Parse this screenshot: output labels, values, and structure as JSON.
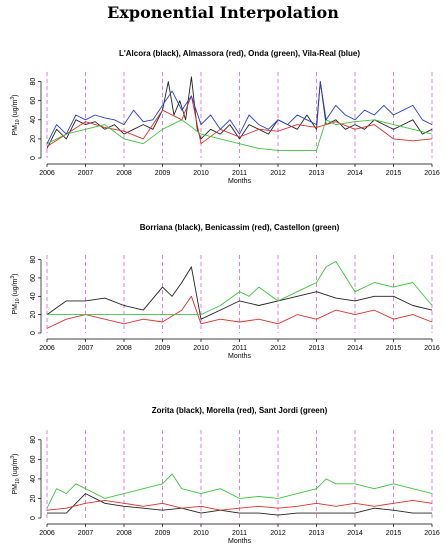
{
  "figure": {
    "title": "Exponential Interpolation"
  },
  "colors": {
    "black": "#222222",
    "red": "#e0302a",
    "green": "#3dc43d",
    "blue": "#2a3fd6",
    "year_line": "#e070e0"
  },
  "chart_data": [
    {
      "type": "line",
      "title": "L'Alcora (black), Almassora (red), Onda (green), Vila-Real (blue)",
      "xlabel": "Months",
      "ylabel": "PM10 (ug/m3)",
      "ylabel_parts": [
        "PM",
        "10",
        " (ug/m",
        "3",
        ")"
      ],
      "xlim": [
        2006,
        2016
      ],
      "ylim": [
        0,
        90
      ],
      "yticks": [
        0,
        20,
        40,
        60,
        80
      ],
      "xticks": [
        2006,
        2007,
        2008,
        2009,
        2010,
        2011,
        2012,
        2013,
        2014,
        2015,
        2016
      ],
      "vlines": [
        2006,
        2007,
        2008,
        2009,
        2010,
        2011,
        2012,
        2013,
        2014,
        2015,
        2016
      ],
      "series": [
        {
          "name": "L'Alcora",
          "color": "black",
          "x": [
            2006.0,
            2006.25,
            2006.5,
            2006.75,
            2007.0,
            2007.25,
            2007.5,
            2007.75,
            2008.0,
            2008.25,
            2008.5,
            2008.75,
            2009.0,
            2009.15,
            2009.3,
            2009.45,
            2009.6,
            2009.75,
            2009.9,
            2010.0,
            2010.25,
            2010.5,
            2010.75,
            2011.0,
            2011.25,
            2011.5,
            2011.75,
            2012.0,
            2012.25,
            2012.5,
            2012.75,
            2013.0,
            2013.1,
            2013.25,
            2013.5,
            2013.75,
            2014.0,
            2014.25,
            2014.5,
            2014.75,
            2015.0,
            2015.25,
            2015.5,
            2015.75,
            2016.0
          ],
          "y": [
            10,
            30,
            20,
            40,
            35,
            38,
            30,
            35,
            25,
            30,
            35,
            30,
            50,
            80,
            45,
            60,
            40,
            85,
            30,
            20,
            30,
            25,
            35,
            20,
            35,
            30,
            25,
            40,
            35,
            30,
            45,
            30,
            80,
            35,
            40,
            30,
            35,
            30,
            40,
            35,
            30,
            35,
            40,
            25,
            30
          ]
        },
        {
          "name": "Almassora",
          "color": "red",
          "x": [
            2006.0,
            2006.5,
            2007.0,
            2007.5,
            2008.0,
            2008.5,
            2009.0,
            2009.5,
            2009.75,
            2010.0,
            2010.5,
            2011.0,
            2011.5,
            2012.0,
            2012.5,
            2013.0,
            2013.5,
            2014.0,
            2014.5,
            2015.0,
            2015.5,
            2016.0
          ],
          "y": [
            12,
            25,
            38,
            32,
            28,
            20,
            50,
            40,
            65,
            15,
            30,
            22,
            30,
            28,
            35,
            32,
            38,
            30,
            35,
            20,
            18,
            20
          ]
        },
        {
          "name": "Onda",
          "color": "green",
          "x": [
            2006.0,
            2006.5,
            2007.0,
            2007.5,
            2008.0,
            2008.5,
            2009.0,
            2009.5,
            2010.0,
            2010.5,
            2011.0,
            2011.5,
            2012.0,
            2013.0,
            2013.25,
            2013.5,
            2014.0,
            2014.5,
            2015.0,
            2015.5,
            2016.0
          ],
          "y": [
            15,
            25,
            30,
            35,
            20,
            15,
            30,
            40,
            25,
            20,
            15,
            10,
            8,
            8,
            40,
            35,
            38,
            40,
            35,
            30,
            25
          ]
        },
        {
          "name": "Vila-Real",
          "color": "blue",
          "x": [
            2006.0,
            2006.25,
            2006.5,
            2006.75,
            2007.0,
            2007.25,
            2007.5,
            2007.75,
            2008.0,
            2008.25,
            2008.5,
            2008.75,
            2009.0,
            2009.25,
            2009.5,
            2009.75,
            2010.0,
            2010.25,
            2010.5,
            2010.75,
            2011.0,
            2011.25,
            2011.5,
            2011.75,
            2012.0,
            2012.25,
            2012.5,
            2012.75,
            2013.0,
            2013.1,
            2013.25,
            2013.5,
            2013.75,
            2014.0,
            2014.25,
            2014.5,
            2014.75,
            2015.0,
            2015.25,
            2015.5,
            2015.75,
            2016.0
          ],
          "y": [
            15,
            35,
            25,
            45,
            40,
            45,
            42,
            40,
            35,
            50,
            38,
            40,
            55,
            70,
            50,
            65,
            35,
            45,
            30,
            40,
            25,
            45,
            35,
            30,
            40,
            35,
            45,
            40,
            35,
            80,
            40,
            55,
            45,
            40,
            50,
            45,
            55,
            45,
            50,
            55,
            40,
            35
          ]
        }
      ]
    },
    {
      "type": "line",
      "title": "Borriana (black), Benicassim (red), Castellon (green)",
      "xlabel": "Months",
      "ylabel": "PM10 (ug/m3)",
      "ylabel_parts": [
        "PM",
        "10",
        " (ug/m",
        "3",
        ")"
      ],
      "xlim": [
        2006,
        2016
      ],
      "ylim": [
        0,
        85
      ],
      "yticks": [
        0,
        20,
        40,
        60,
        80
      ],
      "xticks": [
        2006,
        2007,
        2008,
        2009,
        2010,
        2011,
        2012,
        2013,
        2014,
        2015,
        2016
      ],
      "vlines": [
        2006,
        2007,
        2008,
        2009,
        2010,
        2011,
        2012,
        2013,
        2014,
        2015,
        2016
      ],
      "series": [
        {
          "name": "Borriana",
          "color": "black",
          "x": [
            2006.0,
            2006.5,
            2007.0,
            2007.5,
            2008.0,
            2008.5,
            2009.0,
            2009.25,
            2009.5,
            2009.75,
            2010.0,
            2010.5,
            2011.0,
            2011.5,
            2012.0,
            2012.5,
            2013.0,
            2013.5,
            2014.0,
            2014.5,
            2015.0,
            2015.5,
            2016.0
          ],
          "y": [
            20,
            35,
            35,
            38,
            30,
            25,
            50,
            40,
            55,
            72,
            15,
            25,
            35,
            30,
            35,
            40,
            45,
            38,
            35,
            40,
            40,
            30,
            25
          ]
        },
        {
          "name": "Benicassim",
          "color": "red",
          "x": [
            2006.0,
            2006.5,
            2007.0,
            2007.5,
            2008.0,
            2008.5,
            2009.0,
            2009.5,
            2009.75,
            2010.0,
            2010.5,
            2011.0,
            2011.5,
            2012.0,
            2012.5,
            2013.0,
            2013.5,
            2014.0,
            2014.5,
            2015.0,
            2015.5,
            2016.0
          ],
          "y": [
            5,
            15,
            20,
            15,
            10,
            15,
            12,
            25,
            40,
            10,
            15,
            12,
            15,
            10,
            20,
            15,
            25,
            20,
            25,
            15,
            20,
            12
          ]
        },
        {
          "name": "Castellon",
          "color": "green",
          "x": [
            2006.0,
            2007.0,
            2008.0,
            2009.0,
            2010.0,
            2010.5,
            2011.0,
            2011.25,
            2011.5,
            2012.0,
            2012.5,
            2013.0,
            2013.25,
            2013.5,
            2014.0,
            2014.5,
            2015.0,
            2015.5,
            2016.0
          ],
          "y": [
            20,
            20,
            20,
            20,
            20,
            30,
            45,
            40,
            50,
            35,
            45,
            55,
            72,
            78,
            45,
            55,
            50,
            55,
            30
          ]
        }
      ]
    },
    {
      "type": "line",
      "title": "Zorita (black), Morella (red), Sant Jordi (green)",
      "xlabel": "Months",
      "ylabel": "PM10 (ug/m3)",
      "ylabel_parts": [
        "PM",
        "10",
        " (ug/m",
        "3",
        ")"
      ],
      "xlim": [
        2006,
        2016
      ],
      "ylim": [
        0,
        90
      ],
      "yticks": [
        0,
        20,
        40,
        60,
        80
      ],
      "xticks": [
        2006,
        2007,
        2008,
        2009,
        2010,
        2011,
        2012,
        2013,
        2014,
        2015,
        2016
      ],
      "vlines": [
        2006,
        2007,
        2008,
        2009,
        2010,
        2011,
        2012,
        2013,
        2014,
        2015,
        2016
      ],
      "series": [
        {
          "name": "Zorita",
          "color": "black",
          "x": [
            2006.0,
            2006.5,
            2007.0,
            2007.5,
            2008.0,
            2008.5,
            2009.0,
            2009.5,
            2010.0,
            2010.5,
            2011.0,
            2011.5,
            2012.0,
            2012.5,
            2013.0,
            2013.5,
            2014.0,
            2014.5,
            2015.0,
            2015.5,
            2016.0
          ],
          "y": [
            5,
            5,
            25,
            15,
            12,
            10,
            8,
            10,
            5,
            8,
            5,
            5,
            3,
            5,
            5,
            5,
            5,
            10,
            8,
            5,
            5
          ]
        },
        {
          "name": "Morella",
          "color": "red",
          "x": [
            2006.0,
            2006.5,
            2007.0,
            2007.5,
            2008.0,
            2008.5,
            2009.0,
            2009.5,
            2010.0,
            2010.5,
            2011.0,
            2011.5,
            2012.0,
            2012.5,
            2013.0,
            2013.5,
            2014.0,
            2014.5,
            2015.0,
            2015.5,
            2016.0
          ],
          "y": [
            8,
            10,
            15,
            18,
            15,
            12,
            15,
            10,
            12,
            8,
            10,
            12,
            10,
            12,
            15,
            12,
            15,
            12,
            15,
            18,
            15
          ]
        },
        {
          "name": "Sant Jordi",
          "color": "green",
          "x": [
            2006.0,
            2006.25,
            2006.5,
            2006.75,
            2007.0,
            2007.5,
            2008.0,
            2008.5,
            2009.0,
            2009.25,
            2009.5,
            2010.0,
            2010.5,
            2011.0,
            2011.5,
            2012.0,
            2012.5,
            2013.0,
            2013.25,
            2013.5,
            2014.0,
            2014.5,
            2015.0,
            2015.5,
            2016.0
          ],
          "y": [
            10,
            30,
            25,
            35,
            30,
            20,
            25,
            30,
            35,
            45,
            30,
            25,
            30,
            20,
            22,
            20,
            25,
            30,
            40,
            35,
            35,
            30,
            35,
            30,
            25
          ]
        }
      ]
    }
  ]
}
